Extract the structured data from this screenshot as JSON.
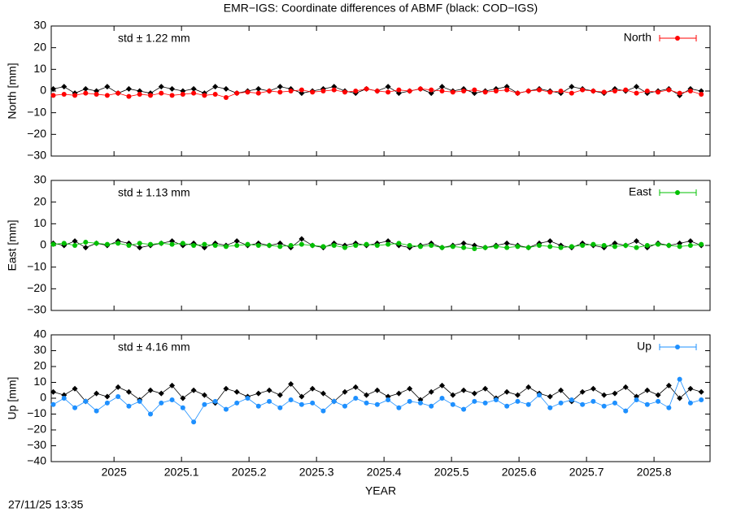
{
  "title": "EMR−IGS: Coordinate differences of ABMF (black: COD−IGS)",
  "timestamp": "27/11/25 13:35",
  "chart_data": [
    {
      "type": "line",
      "ylabel": "North [mm]",
      "annotation": "std ± 1.22 mm",
      "xlim": [
        2024.907,
        2025.883
      ],
      "xticks": [
        2025,
        2025.1,
        2025.2,
        2025.3,
        2025.4,
        2025.5,
        2025.6,
        2025.7,
        2025.8
      ],
      "ylim": [
        -30,
        30
      ],
      "yticks": [
        30,
        20,
        10,
        0,
        {
          "value": -10,
          "label": "−10"
        },
        {
          "value": -20,
          "label": "−20"
        },
        {
          "value": -30,
          "label": "−30"
        }
      ],
      "x": [
        2024.91,
        2024.926,
        2024.942,
        2024.958,
        2024.974,
        2024.99,
        2025.006,
        2025.022,
        2025.038,
        2025.054,
        2025.07,
        2025.086,
        2025.102,
        2025.118,
        2025.134,
        2025.15,
        2025.166,
        2025.182,
        2025.198,
        2025.214,
        2025.23,
        2025.246,
        2025.262,
        2025.278,
        2025.294,
        2025.31,
        2025.326,
        2025.342,
        2025.358,
        2025.374,
        2025.39,
        2025.406,
        2025.422,
        2025.438,
        2025.454,
        2025.47,
        2025.486,
        2025.502,
        2025.518,
        2025.534,
        2025.55,
        2025.566,
        2025.582,
        2025.598,
        2025.614,
        2025.63,
        2025.646,
        2025.662,
        2025.678,
        2025.694,
        2025.71,
        2025.726,
        2025.742,
        2025.758,
        2025.774,
        2025.79,
        2025.806,
        2025.822,
        2025.838,
        2025.854,
        2025.87
      ],
      "series": [
        {
          "color": "#000000",
          "marker": "diamond",
          "values": [
            1,
            2,
            -1,
            1,
            0,
            2,
            -1,
            1,
            0,
            -1,
            2,
            1,
            0,
            1,
            -1,
            2,
            1,
            -1,
            0,
            1,
            0,
            2,
            1,
            -1,
            0,
            1,
            2,
            0,
            -1,
            1,
            0,
            2,
            -1,
            0,
            1,
            -1,
            2,
            0,
            1,
            -1,
            0,
            1,
            2,
            -1,
            0,
            1,
            0,
            -1,
            2,
            1,
            0,
            -1,
            1,
            0,
            2,
            -1,
            0,
            1,
            -2,
            1,
            0
          ]
        },
        {
          "name": "North",
          "color": "#ff0000",
          "marker": "circle",
          "values": [
            -2,
            -1.5,
            -2,
            -1,
            -1.5,
            -2,
            -1,
            -2.5,
            -1.5,
            -2,
            -1,
            -2,
            -1.5,
            -1,
            -2,
            -1.5,
            -3,
            -1,
            -0.5,
            -1,
            0,
            -0.5,
            0,
            0.5,
            -0.5,
            0,
            0.5,
            -0.5,
            0,
            1,
            0,
            -0.5,
            0.5,
            0,
            1,
            0.5,
            0,
            -0.5,
            0,
            0.5,
            -0.5,
            0,
            0.5,
            -1,
            0,
            0.5,
            -0.5,
            0,
            -1,
            0.5,
            0,
            -0.5,
            0,
            0.5,
            -1,
            0,
            -0.5,
            0.5,
            -1,
            0,
            -1.5
          ]
        }
      ]
    },
    {
      "type": "line",
      "ylabel": "East [mm]",
      "annotation": "std ± 1.13 mm",
      "xlim": [
        2024.907,
        2025.883
      ],
      "xticks": [
        2025,
        2025.1,
        2025.2,
        2025.3,
        2025.4,
        2025.5,
        2025.6,
        2025.7,
        2025.8
      ],
      "ylim": [
        -30,
        30
      ],
      "yticks": [
        30,
        20,
        10,
        0,
        {
          "value": -10,
          "label": "−10"
        },
        {
          "value": -20,
          "label": "−20"
        },
        {
          "value": -30,
          "label": "−30"
        }
      ],
      "x": [
        2024.91,
        2024.926,
        2024.942,
        2024.958,
        2024.974,
        2024.99,
        2025.006,
        2025.022,
        2025.038,
        2025.054,
        2025.07,
        2025.086,
        2025.102,
        2025.118,
        2025.134,
        2025.15,
        2025.166,
        2025.182,
        2025.198,
        2025.214,
        2025.23,
        2025.246,
        2025.262,
        2025.278,
        2025.294,
        2025.31,
        2025.326,
        2025.342,
        2025.358,
        2025.374,
        2025.39,
        2025.406,
        2025.422,
        2025.438,
        2025.454,
        2025.47,
        2025.486,
        2025.502,
        2025.518,
        2025.534,
        2025.55,
        2025.566,
        2025.582,
        2025.598,
        2025.614,
        2025.63,
        2025.646,
        2025.662,
        2025.678,
        2025.694,
        2025.71,
        2025.726,
        2025.742,
        2025.758,
        2025.774,
        2025.79,
        2025.806,
        2025.822,
        2025.838,
        2025.854,
        2025.87
      ],
      "series": [
        {
          "color": "#000000",
          "marker": "diamond",
          "values": [
            1,
            0,
            2,
            -1,
            1,
            0,
            2,
            1,
            -1,
            0,
            1,
            2,
            0,
            1,
            -1,
            1,
            0,
            2,
            0,
            1,
            0,
            1,
            -1,
            3,
            0,
            -1,
            1,
            0,
            1,
            0,
            1,
            2,
            0,
            -1,
            0,
            1,
            -1,
            0,
            1,
            0,
            -1,
            0,
            1,
            0,
            -1,
            1,
            2,
            0,
            -1,
            1,
            0,
            -1,
            1,
            0,
            2,
            -1,
            1,
            0,
            1,
            2,
            0
          ]
        },
        {
          "name": "East",
          "color": "#00c000",
          "marker": "circle",
          "values": [
            0.5,
            1,
            0,
            1.5,
            1,
            0.5,
            1,
            0,
            1,
            0.5,
            1,
            0.5,
            1,
            0,
            0.5,
            0,
            -0.5,
            0,
            0.5,
            0,
            0,
            -0.5,
            0,
            0.5,
            0,
            -0.5,
            0,
            -1,
            0,
            0.5,
            0,
            0.5,
            1,
            0,
            -0.5,
            0,
            -1,
            -0.5,
            -1,
            -1.5,
            -1,
            -0.5,
            -1,
            -0.5,
            -1,
            0,
            -0.5,
            -1,
            -0.5,
            0,
            0.5,
            0,
            -0.5,
            0,
            -1,
            0,
            0.5,
            0,
            -0.5,
            0,
            0.5
          ]
        }
      ]
    },
    {
      "type": "line",
      "ylabel": "Up [mm]",
      "annotation": "std ± 4.16 mm",
      "xlabel": "YEAR",
      "xlim": [
        2024.907,
        2025.883
      ],
      "xticks": [
        2025,
        2025.1,
        2025.2,
        2025.3,
        2025.4,
        2025.5,
        2025.6,
        2025.7,
        2025.8
      ],
      "ylim": [
        -40,
        40
      ],
      "yticks": [
        40,
        30,
        20,
        10,
        0,
        {
          "value": -10,
          "label": "−10"
        },
        {
          "value": -20,
          "label": "−20"
        },
        {
          "value": -30,
          "label": "−30"
        },
        {
          "value": -40,
          "label": "−40"
        }
      ],
      "x": [
        2024.91,
        2024.926,
        2024.942,
        2024.958,
        2024.974,
        2024.99,
        2025.006,
        2025.022,
        2025.038,
        2025.054,
        2025.07,
        2025.086,
        2025.102,
        2025.118,
        2025.134,
        2025.15,
        2025.166,
        2025.182,
        2025.198,
        2025.214,
        2025.23,
        2025.246,
        2025.262,
        2025.278,
        2025.294,
        2025.31,
        2025.326,
        2025.342,
        2025.358,
        2025.374,
        2025.39,
        2025.406,
        2025.422,
        2025.438,
        2025.454,
        2025.47,
        2025.486,
        2025.502,
        2025.518,
        2025.534,
        2025.55,
        2025.566,
        2025.582,
        2025.598,
        2025.614,
        2025.63,
        2025.646,
        2025.662,
        2025.678,
        2025.694,
        2025.71,
        2025.726,
        2025.742,
        2025.758,
        2025.774,
        2025.79,
        2025.806,
        2025.822,
        2025.838,
        2025.854,
        2025.87
      ],
      "series": [
        {
          "color": "#000000",
          "marker": "diamond",
          "values": [
            4,
            2,
            6,
            -2,
            3,
            1,
            7,
            4,
            -1,
            5,
            3,
            8,
            0,
            5,
            2,
            -3,
            6,
            4,
            1,
            3,
            5,
            2,
            9,
            1,
            6,
            3,
            -2,
            4,
            7,
            2,
            5,
            1,
            3,
            6,
            -1,
            4,
            8,
            2,
            5,
            3,
            6,
            0,
            4,
            2,
            7,
            3,
            1,
            5,
            -2,
            4,
            6,
            2,
            3,
            7,
            1,
            5,
            2,
            8,
            0,
            6,
            4
          ]
        },
        {
          "name": "Up",
          "color": "#1e90ff",
          "marker": "circle",
          "values": [
            -4,
            0,
            -6,
            -2,
            -8,
            -3,
            1,
            -5,
            -2,
            -10,
            -3,
            -1,
            -6,
            -15,
            -4,
            -2,
            -7,
            -3,
            0,
            -5,
            -2,
            -6,
            -1,
            -4,
            -3,
            -8,
            -2,
            -5,
            0,
            -3,
            -4,
            -1,
            -6,
            -2,
            -3,
            -5,
            0,
            -4,
            -7,
            -2,
            -3,
            -1,
            -5,
            -2,
            -4,
            2,
            -6,
            -3,
            -1,
            -4,
            -2,
            -5,
            -3,
            -8,
            -1,
            -4,
            -2,
            -6,
            12,
            -3,
            -1
          ]
        }
      ]
    }
  ]
}
